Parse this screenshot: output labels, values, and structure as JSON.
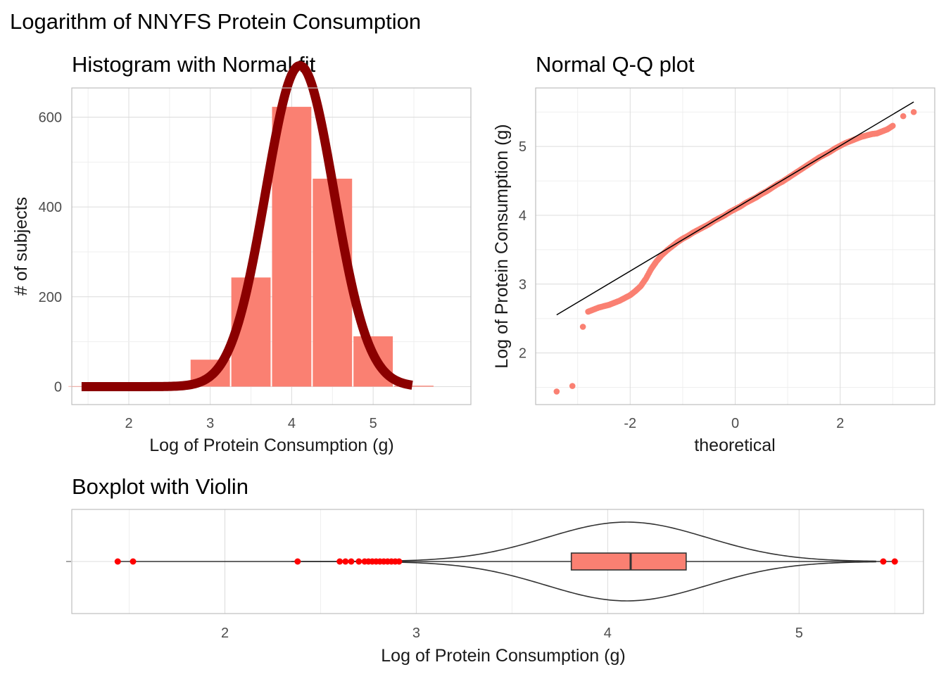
{
  "title": "Logarithm of NNYFS Protein Consumption",
  "colors": {
    "bar_fill": "#fa8072",
    "normal_curve": "#8b0000",
    "qq_points": "#fa8072",
    "qq_line": "#000000",
    "outliers": "#ff0000",
    "box_fill": "#fa8072",
    "violin_line": "#333333"
  },
  "chart_data": [
    {
      "id": "histogram",
      "type": "bar",
      "title": "Histogram with Normal fit",
      "xlabel": "Log of Protein Consumption (g)",
      "ylabel": "# of subjects",
      "xlim": [
        1.3,
        6.2
      ],
      "ylim": [
        -40,
        665
      ],
      "x_ticks": [
        2,
        3,
        4,
        5
      ],
      "y_ticks": [
        0,
        200,
        400,
        600
      ],
      "bin_width": 0.5,
      "bins": [
        {
          "center": 1.5,
          "count": 1
        },
        {
          "center": 2.0,
          "count": 0
        },
        {
          "center": 2.5,
          "count": 1
        },
        {
          "center": 3.0,
          "count": 60
        },
        {
          "center": 3.5,
          "count": 243
        },
        {
          "center": 4.0,
          "count": 623
        },
        {
          "center": 4.5,
          "count": 463
        },
        {
          "center": 5.0,
          "count": 112
        },
        {
          "center": 5.5,
          "count": 2
        }
      ],
      "normal_fit": {
        "mean": 4.1,
        "sd": 0.42,
        "n": 1505,
        "bin_width": 0.5,
        "x_range": [
          1.42,
          5.48
        ]
      }
    },
    {
      "id": "qq",
      "type": "scatter",
      "title": "Normal Q-Q plot",
      "xlabel": "theoretical",
      "ylabel": "Log of Protein Consumption (g)",
      "xlim": [
        -3.8,
        3.8
      ],
      "ylim": [
        1.25,
        5.85
      ],
      "x_ticks": [
        -2,
        0,
        2
      ],
      "y_ticks": [
        2,
        3,
        4,
        5
      ],
      "reference_line": {
        "intercept": 4.1,
        "slope": 0.455,
        "x_range": [
          -3.4,
          3.4
        ]
      },
      "points": [
        [
          -3.4,
          1.44
        ],
        [
          -3.1,
          1.52
        ],
        [
          -2.9,
          2.38
        ],
        [
          -2.8,
          2.6
        ],
        [
          -2.7,
          2.63
        ],
        [
          -2.6,
          2.66
        ],
        [
          -2.5,
          2.68
        ],
        [
          -2.4,
          2.7
        ],
        [
          -2.3,
          2.73
        ],
        [
          -2.2,
          2.76
        ],
        [
          -2.1,
          2.8
        ],
        [
          -2.0,
          2.84
        ],
        [
          -1.9,
          2.9
        ],
        [
          -1.8,
          2.97
        ],
        [
          -1.7,
          3.08
        ],
        [
          -1.6,
          3.22
        ],
        [
          -1.5,
          3.33
        ],
        [
          -1.4,
          3.42
        ],
        [
          -1.3,
          3.49
        ],
        [
          -1.2,
          3.55
        ],
        [
          -1.1,
          3.61
        ],
        [
          -1.0,
          3.66
        ],
        [
          -0.9,
          3.7
        ],
        [
          -0.8,
          3.75
        ],
        [
          -0.7,
          3.79
        ],
        [
          -0.6,
          3.83
        ],
        [
          -0.5,
          3.87
        ],
        [
          -0.4,
          3.92
        ],
        [
          -0.3,
          3.96
        ],
        [
          -0.2,
          4.0
        ],
        [
          -0.1,
          4.05
        ],
        [
          0.0,
          4.09
        ],
        [
          0.1,
          4.13
        ],
        [
          0.2,
          4.18
        ],
        [
          0.3,
          4.22
        ],
        [
          0.4,
          4.26
        ],
        [
          0.5,
          4.31
        ],
        [
          0.6,
          4.35
        ],
        [
          0.7,
          4.4
        ],
        [
          0.8,
          4.45
        ],
        [
          0.9,
          4.49
        ],
        [
          1.0,
          4.54
        ],
        [
          1.1,
          4.59
        ],
        [
          1.2,
          4.64
        ],
        [
          1.3,
          4.69
        ],
        [
          1.4,
          4.74
        ],
        [
          1.5,
          4.79
        ],
        [
          1.6,
          4.84
        ],
        [
          1.7,
          4.88
        ],
        [
          1.8,
          4.92
        ],
        [
          1.9,
          4.97
        ],
        [
          2.0,
          5.01
        ],
        [
          2.1,
          5.05
        ],
        [
          2.2,
          5.08
        ],
        [
          2.3,
          5.11
        ],
        [
          2.4,
          5.14
        ],
        [
          2.5,
          5.16
        ],
        [
          2.6,
          5.18
        ],
        [
          2.7,
          5.19
        ],
        [
          2.8,
          5.22
        ],
        [
          2.9,
          5.25
        ],
        [
          3.0,
          5.3
        ],
        [
          3.2,
          5.44
        ],
        [
          3.4,
          5.5
        ]
      ]
    },
    {
      "id": "boxplot",
      "type": "box",
      "title": "Boxplot with Violin",
      "xlabel": "Log of Protein Consumption (g)",
      "ylabel": "",
      "xlim": [
        1.2,
        5.65
      ],
      "x_ticks": [
        2,
        3,
        4,
        5
      ],
      "box": {
        "q1": 3.81,
        "median": 4.12,
        "q3": 4.41,
        "whisker_low": 1.44,
        "whisker_high": 5.5
      },
      "outliers": [
        1.44,
        1.52,
        2.38,
        2.6,
        2.63,
        2.66,
        2.7,
        2.73,
        2.75,
        2.77,
        2.79,
        2.81,
        2.83,
        2.85,
        2.87,
        2.89,
        2.91,
        5.44,
        5.5
      ],
      "violin": {
        "mean": 4.1,
        "sd": 0.42,
        "x_range": [
          2.35,
          5.4
        ]
      }
    }
  ]
}
